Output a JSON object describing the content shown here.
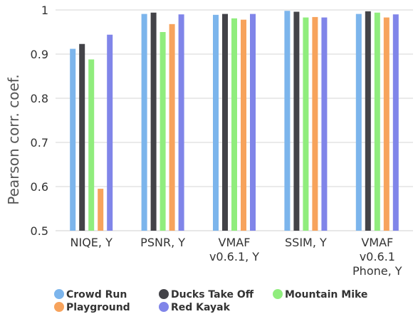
{
  "chart_data": {
    "type": "bar",
    "title": "",
    "xlabel": "",
    "ylabel": "Pearson corr. coef.",
    "ylim": [
      0.5,
      1.0
    ],
    "yticks": [
      0.5,
      0.6,
      0.7,
      0.8,
      0.9,
      1
    ],
    "ytick_labels": [
      "0.5",
      "0.6",
      "0.7",
      "0.8",
      "0.9",
      "1"
    ],
    "grid": true,
    "legend_position": "bottom",
    "categories": [
      [
        "NIQE, Y"
      ],
      [
        "PSNR, Y"
      ],
      [
        "VMAF",
        "v0.6.1, Y"
      ],
      [
        "SSIM, Y"
      ],
      [
        "VMAF",
        "v0.6.1",
        "Phone, Y"
      ]
    ],
    "series": [
      {
        "name": "Crowd Run",
        "color": "#7cb5ec",
        "values": [
          0.912,
          0.991,
          0.989,
          0.998,
          0.991
        ]
      },
      {
        "name": "Ducks Take Off",
        "color": "#434348",
        "values": [
          0.923,
          0.994,
          0.991,
          0.996,
          0.997
        ]
      },
      {
        "name": "Mountain Mike",
        "color": "#90ed7d",
        "values": [
          0.888,
          0.95,
          0.981,
          0.983,
          0.994
        ]
      },
      {
        "name": "Playground",
        "color": "#f7a35c",
        "values": [
          0.595,
          0.968,
          0.978,
          0.984,
          0.983
        ]
      },
      {
        "name": "Red Kayak",
        "color": "#8085e9",
        "values": [
          0.944,
          0.99,
          0.991,
          0.983,
          0.99
        ]
      }
    ]
  }
}
